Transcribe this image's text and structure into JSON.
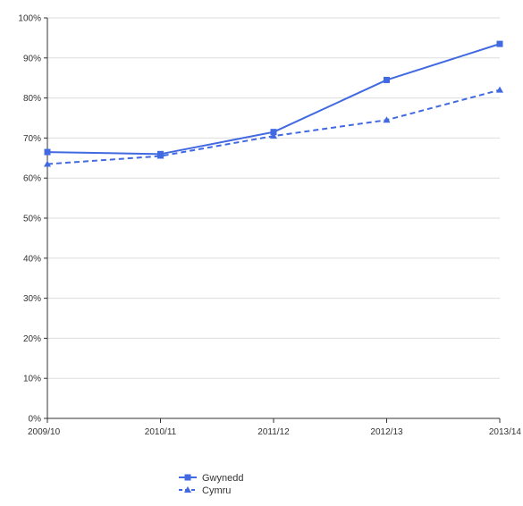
{
  "chart_data": {
    "type": "line",
    "x": [
      "2009/10",
      "2010/11",
      "2011/12",
      "2012/13",
      "2013/14"
    ],
    "ylim": [
      0,
      100
    ],
    "yticks": [
      0,
      10,
      20,
      30,
      40,
      50,
      60,
      70,
      80,
      90,
      100
    ],
    "ytick_labels": [
      "0%",
      "10%",
      "20%",
      "30%",
      "40%",
      "50%",
      "60%",
      "70%",
      "80%",
      "90%",
      "100%"
    ],
    "grid": true,
    "legend_position": "bottom",
    "series": [
      {
        "name": "Gwynedd",
        "values": [
          66.5,
          66,
          71.5,
          84.5,
          93.5
        ],
        "marker": "square",
        "line_style": "solid",
        "color": "#4169e1"
      },
      {
        "name": "Cymru",
        "values": [
          63.5,
          65.5,
          70.5,
          74.5,
          82
        ],
        "marker": "triangle",
        "line_style": "dashed",
        "color": "#4169e1"
      }
    ]
  }
}
